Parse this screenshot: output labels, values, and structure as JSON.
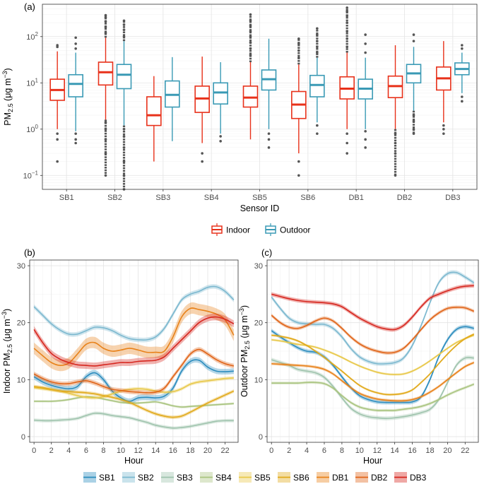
{
  "colors": {
    "indoor": "#e8311a",
    "outdoor": "#3a9ab5",
    "outlier": "#555555",
    "SB1": "#2b8cbe",
    "SB2": "#7bb8cf",
    "SB3": "#9ec3ac",
    "SB4": "#a9c47f",
    "SB5": "#e8c84a",
    "SB6": "#e1a91a",
    "DB1": "#e8821a",
    "DB2": "#e06418",
    "DB3": "#d6261e"
  },
  "chart_data": [
    {
      "id": "a",
      "tag": "(a)",
      "type": "box",
      "xlabel": "Sensor ID",
      "ylabel_parts": [
        "PM",
        "2.5",
        " (μg m",
        "−3",
        ")"
      ],
      "yscale": "log10",
      "ylim": [
        0.05,
        500
      ],
      "yticks": [
        {
          "value": 0.1,
          "base": "10",
          "exp": "−1"
        },
        {
          "value": 1,
          "base": "10",
          "exp": "0"
        },
        {
          "value": 10,
          "base": "10",
          "exp": "1"
        },
        {
          "value": 100,
          "base": "10",
          "exp": "2"
        }
      ],
      "categories": [
        "SB1",
        "SB2",
        "SB3",
        "SB4",
        "SB5",
        "SB6",
        "DB1",
        "DB2",
        "DB3"
      ],
      "series": [
        {
          "name": "Indoor",
          "color_key": "indoor",
          "boxes": [
            {
              "q1": 4.2,
              "median": 7.0,
              "q3": 12.0,
              "lo": 1.0,
              "hi": 48,
              "outliers": [
                0.8,
                0.6,
                0.2,
                60,
                65
              ]
            },
            {
              "q1": 9.0,
              "median": 17.0,
              "q3": 28.0,
              "lo": 1.6,
              "hi": 95,
              "outliers": [
                1.4,
                1.0,
                0.6,
                0.3,
                0.1,
                120,
                160,
                210,
                260,
                290
              ]
            },
            {
              "q1": 1.2,
              "median": 2.0,
              "q3": 5.0,
              "lo": 0.2,
              "hi": 14,
              "outliers": []
            },
            {
              "q1": 2.3,
              "median": 4.6,
              "q3": 8.5,
              "lo": 0.5,
              "hi": 37,
              "outliers": [
                0.3,
                0.2
              ]
            },
            {
              "q1": 3.0,
              "median": 4.8,
              "q3": 8.5,
              "lo": 0.6,
              "hi": 28,
              "outliers": [
                40,
                55,
                75,
                100,
                130,
                170,
                220,
                300
              ]
            },
            {
              "q1": 1.7,
              "median": 3.4,
              "q3": 6.5,
              "lo": 0.3,
              "hi": 25,
              "outliers": [
                0.2,
                0.1,
                35,
                50,
                70,
                90
              ]
            },
            {
              "q1": 4.5,
              "median": 7.5,
              "q3": 13.5,
              "lo": 1.0,
              "hi": 45,
              "outliers": [
                0.8,
                0.5,
                0.3,
                60,
                90,
                130,
                200,
                280,
                350,
                420
              ]
            },
            {
              "q1": 4.8,
              "median": 8.5,
              "q3": 14.0,
              "lo": 1.0,
              "hi": 65,
              "outliers": [
                0.8,
                0.5,
                0.3,
                0.1
              ]
            },
            {
              "q1": 7.0,
              "median": 12.5,
              "q3": 22.0,
              "lo": 1.4,
              "hi": 80,
              "outliers": [
                1.2,
                1.0,
                0.8
              ]
            }
          ]
        },
        {
          "name": "Outdoor",
          "color_key": "outdoor",
          "boxes": [
            {
              "q1": 5.0,
              "median": 9.5,
              "q3": 15.0,
              "lo": 0.9,
              "hi": 45,
              "outliers": [
                0.8,
                0.6,
                0.5,
                55,
                70,
                95
              ]
            },
            {
              "q1": 7.5,
              "median": 15.0,
              "q3": 25.0,
              "lo": 1.2,
              "hi": 80,
              "outliers": [
                1.0,
                0.7,
                0.4,
                0.2,
                0.1,
                0.05,
                100,
                140,
                180,
                220
              ]
            },
            {
              "q1": 3.0,
              "median": 5.5,
              "q3": 11.0,
              "lo": 0.55,
              "hi": 36,
              "outliers": []
            },
            {
              "q1": 3.5,
              "median": 6.2,
              "q3": 10.0,
              "lo": 0.8,
              "hi": 28,
              "outliers": [
                0.7,
                0.55
              ]
            },
            {
              "q1": 7.0,
              "median": 12.0,
              "q3": 19.0,
              "lo": 1.0,
              "hi": 90,
              "outliers": [
                0.8,
                0.6,
                0.4
              ]
            },
            {
              "q1": 5.0,
              "median": 9.0,
              "q3": 14.5,
              "lo": 1.4,
              "hi": 35,
              "outliers": [
                1.2,
                0.8,
                45,
                60,
                80,
                110,
                150
              ]
            },
            {
              "q1": 4.5,
              "median": 7.5,
              "q3": 12.0,
              "lo": 1.0,
              "hi": 35,
              "outliers": [
                0.9,
                0.6,
                0.4,
                45,
                70,
                110
              ]
            },
            {
              "q1": 10.0,
              "median": 16.0,
              "q3": 25.0,
              "lo": 2.5,
              "hi": 60,
              "outliers": [
                2.0,
                1.5,
                1.0,
                0.8,
                80,
                110
              ]
            },
            {
              "q1": 15.0,
              "median": 20.0,
              "q3": 27.0,
              "lo": 6.0,
              "hi": 45,
              "outliers": [
                5.0,
                4.0,
                55,
                65
              ]
            }
          ]
        }
      ]
    },
    {
      "id": "b",
      "tag": "(b)",
      "type": "line",
      "xlabel": "Hour",
      "ylabel_parts": [
        "Indoor PM",
        "2.5",
        " (μg m",
        "−3",
        ")"
      ],
      "xlim": [
        -0.5,
        23.5
      ],
      "ylim": [
        -1.0,
        31.0
      ],
      "xticks": [
        0,
        2,
        4,
        6,
        8,
        10,
        12,
        14,
        16,
        18,
        20,
        22
      ],
      "yticks": [
        0,
        10,
        20,
        30
      ],
      "x": [
        0,
        1,
        2,
        3,
        4,
        5,
        6,
        7,
        8,
        9,
        10,
        11,
        12,
        13,
        14,
        15,
        16,
        17,
        18,
        19,
        20,
        21,
        22,
        23
      ],
      "series": [
        {
          "name": "SB1",
          "band": 0.5,
          "values": [
            10.5,
            9.6,
            9.0,
            8.6,
            8.4,
            8.8,
            10.5,
            11.2,
            10.0,
            8.0,
            6.8,
            6.2,
            6.8,
            6.9,
            6.8,
            7.1,
            8.5,
            11.5,
            13.2,
            13.4,
            12.2,
            11.5,
            11.4,
            11.5
          ]
        },
        {
          "name": "SB2",
          "band": 0.4,
          "values": [
            22.8,
            21.3,
            19.8,
            18.7,
            18.0,
            18.0,
            18.6,
            19.2,
            19.1,
            18.6,
            17.8,
            17.2,
            17.0,
            17.0,
            17.5,
            19.0,
            21.5,
            24.0,
            25.0,
            25.5,
            26.2,
            26.3,
            25.5,
            24.0
          ]
        },
        {
          "name": "SB3",
          "band": 0.3,
          "values": [
            2.9,
            2.8,
            2.8,
            2.9,
            3.0,
            3.2,
            3.7,
            4.1,
            4.0,
            3.7,
            3.5,
            3.3,
            2.9,
            2.5,
            2.0,
            1.7,
            1.5,
            1.6,
            1.8,
            2.1,
            2.4,
            2.7,
            2.8,
            2.8
          ]
        },
        {
          "name": "SB4",
          "band": 0.2,
          "values": [
            6.2,
            6.2,
            6.2,
            6.3,
            6.5,
            6.8,
            7.0,
            6.9,
            6.6,
            6.3,
            6.0,
            5.9,
            5.9,
            6.0,
            6.1,
            5.8,
            5.4,
            5.2,
            5.3,
            5.4,
            5.5,
            5.6,
            5.7,
            5.8
          ]
        },
        {
          "name": "SB5",
          "band": 0.3,
          "values": [
            8.6,
            8.4,
            8.2,
            8.0,
            7.6,
            7.2,
            6.9,
            6.8,
            7.0,
            7.5,
            8.0,
            8.3,
            8.4,
            8.3,
            8.0,
            7.8,
            7.9,
            8.4,
            9.2,
            9.6,
            9.8,
            10.0,
            10.2,
            10.3
          ]
        },
        {
          "name": "SB6",
          "band": 0.3,
          "values": [
            8.8,
            8.6,
            8.3,
            8.0,
            7.9,
            7.8,
            7.7,
            7.5,
            7.2,
            6.9,
            6.5,
            6.0,
            5.3,
            4.6,
            4.0,
            3.6,
            3.4,
            3.6,
            4.3,
            5.1,
            5.9,
            6.6,
            7.3,
            8.0
          ]
        },
        {
          "name": "DB1",
          "band": 1.0,
          "values": [
            15.5,
            14.2,
            13.0,
            12.5,
            12.9,
            14.5,
            16.2,
            16.5,
            15.5,
            15.0,
            15.2,
            15.5,
            15.2,
            14.8,
            14.8,
            15.0,
            17.5,
            21.0,
            22.5,
            22.3,
            22.0,
            21.5,
            20.5,
            17.8
          ]
        },
        {
          "name": "DB2",
          "band": 0.4,
          "values": [
            11.0,
            10.2,
            9.6,
            9.3,
            9.3,
            9.6,
            9.8,
            9.4,
            8.8,
            8.3,
            8.1,
            7.9,
            7.8,
            7.7,
            7.8,
            8.5,
            10.5,
            12.5,
            14.5,
            15.3,
            14.5,
            13.5,
            12.8,
            12.4
          ]
        },
        {
          "name": "DB3",
          "band": 0.6,
          "values": [
            18.8,
            16.5,
            14.6,
            13.6,
            13.0,
            12.6,
            12.5,
            12.4,
            12.6,
            12.8,
            13.0,
            13.0,
            13.2,
            13.3,
            13.4,
            14.0,
            15.5,
            17.0,
            18.5,
            20.0,
            20.8,
            21.0,
            20.6,
            19.8
          ]
        }
      ]
    },
    {
      "id": "c",
      "tag": "(c)",
      "type": "line",
      "xlabel": "Hour",
      "ylabel_parts": [
        "Outdoor PM",
        "2.5",
        " (μg m",
        "−3",
        ")"
      ],
      "xlim": [
        -0.5,
        23.5
      ],
      "ylim": [
        -1.0,
        31.0
      ],
      "xticks": [
        0,
        2,
        4,
        6,
        8,
        10,
        12,
        14,
        16,
        18,
        20,
        22
      ],
      "yticks": [
        0,
        10,
        20,
        30
      ],
      "x": [
        0,
        1,
        2,
        3,
        4,
        5,
        6,
        7,
        8,
        9,
        10,
        11,
        12,
        13,
        14,
        15,
        16,
        17,
        18,
        19,
        20,
        21,
        22,
        23
      ],
      "series": [
        {
          "name": "SB1",
          "band": 0.35,
          "values": [
            18.6,
            17.5,
            16.5,
            15.6,
            15.0,
            14.8,
            14.0,
            12.5,
            10.5,
            8.6,
            7.2,
            6.5,
            6.1,
            6.0,
            6.0,
            6.0,
            6.1,
            7.0,
            10.0,
            14.0,
            17.0,
            18.8,
            19.3,
            19.0
          ]
        },
        {
          "name": "SB2",
          "band": 0.35,
          "values": [
            24.5,
            22.5,
            20.8,
            20.0,
            19.8,
            19.7,
            19.7,
            19.0,
            17.5,
            15.5,
            14.0,
            13.2,
            12.8,
            12.8,
            13.0,
            13.8,
            16.0,
            19.5,
            23.5,
            27.0,
            28.6,
            28.8,
            28.0,
            27.0
          ]
        },
        {
          "name": "SB3",
          "band": 0.35,
          "values": [
            13.5,
            13.0,
            12.5,
            11.8,
            11.5,
            11.2,
            10.4,
            8.8,
            6.8,
            5.0,
            4.0,
            3.5,
            3.3,
            3.2,
            3.3,
            3.5,
            3.8,
            4.2,
            4.8,
            6.5,
            9.5,
            12.5,
            13.8,
            13.8
          ]
        },
        {
          "name": "SB4",
          "band": 0.25,
          "values": [
            9.4,
            9.4,
            9.4,
            9.4,
            9.5,
            9.5,
            9.3,
            8.5,
            7.2,
            6.0,
            5.2,
            4.8,
            4.6,
            4.6,
            4.6,
            4.8,
            5.0,
            5.3,
            5.8,
            6.5,
            7.3,
            8.0,
            8.6,
            9.2
          ]
        },
        {
          "name": "SB5",
          "band": 0.2,
          "values": [
            17.0,
            16.8,
            16.5,
            16.2,
            16.0,
            15.7,
            15.2,
            14.6,
            13.9,
            13.1,
            12.4,
            11.8,
            11.3,
            11.0,
            10.9,
            11.0,
            11.5,
            12.3,
            13.3,
            14.4,
            15.5,
            16.5,
            17.2,
            17.8
          ]
        },
        {
          "name": "SB6",
          "band": 0.2,
          "values": [
            17.8,
            17.6,
            17.3,
            16.8,
            16.0,
            15.0,
            13.9,
            12.7,
            11.5,
            10.2,
            9.0,
            8.2,
            7.7,
            7.4,
            7.4,
            7.6,
            8.2,
            9.5,
            11.0,
            12.8,
            14.5,
            16.0,
            17.2,
            18.0
          ]
        },
        {
          "name": "DB1",
          "band": 0.25,
          "values": [
            12.8,
            12.7,
            12.6,
            12.5,
            12.4,
            12.2,
            11.8,
            11.0,
            9.8,
            8.6,
            7.6,
            7.0,
            6.6,
            6.4,
            6.3,
            6.3,
            6.5,
            7.0,
            7.8,
            8.8,
            10.0,
            11.2,
            12.3,
            13.0
          ]
        },
        {
          "name": "DB2",
          "band": 0.3,
          "values": [
            21.3,
            20.0,
            19.2,
            19.0,
            19.5,
            20.3,
            20.8,
            20.3,
            19.0,
            17.5,
            16.3,
            15.5,
            15.0,
            14.7,
            14.8,
            15.5,
            17.0,
            18.8,
            20.5,
            21.7,
            22.5,
            22.7,
            22.6,
            22.0
          ]
        },
        {
          "name": "DB3",
          "band": 0.35,
          "values": [
            25.0,
            24.6,
            24.2,
            23.9,
            23.7,
            23.6,
            23.5,
            23.3,
            22.8,
            21.8,
            20.8,
            20.0,
            19.3,
            18.9,
            18.8,
            19.5,
            21.0,
            22.8,
            24.3,
            25.0,
            25.6,
            26.1,
            26.4,
            26.5
          ]
        }
      ]
    }
  ],
  "legend_top": [
    {
      "label": "Indoor",
      "color_key": "indoor"
    },
    {
      "label": "Outdoor",
      "color_key": "outdoor"
    }
  ],
  "legend_bottom": [
    "SB1",
    "SB2",
    "SB3",
    "SB4",
    "SB5",
    "SB6",
    "DB1",
    "DB2",
    "DB3"
  ]
}
